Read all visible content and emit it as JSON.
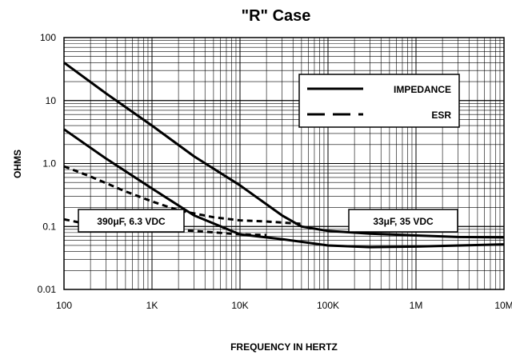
{
  "chart_data": {
    "type": "line",
    "title": "\"R\" Case",
    "xlabel": "FREQUENCY IN HERTZ",
    "ylabel": "OHMS",
    "xscale": "log",
    "yscale": "log",
    "xlim": [
      100,
      10000000
    ],
    "ylim": [
      0.01,
      100
    ],
    "grid": true,
    "x_ticks": [
      100,
      1000,
      10000,
      100000,
      1000000,
      10000000
    ],
    "x_tick_labels": [
      "100",
      "1K",
      "10K",
      "100K",
      "1M",
      "10M"
    ],
    "y_ticks": [
      100,
      10,
      1,
      0.1,
      0.01
    ],
    "y_tick_labels": [
      "100",
      "10",
      "1.0",
      "0.1",
      "0.01"
    ],
    "legend": {
      "position": "top-right",
      "entries": [
        {
          "label": "IMPEDANCE",
          "style": "solid"
        },
        {
          "label": "ESR",
          "style": "dashed"
        }
      ]
    },
    "annotations": [
      {
        "text": "390μF, 6.3 VDC",
        "position": "middle-left"
      },
      {
        "text": "33μF, 35 VDC",
        "position": "middle-right"
      }
    ],
    "series": [
      {
        "style": "solid",
        "points": [
          [
            100,
            40
          ],
          [
            300,
            13
          ],
          [
            1000,
            4
          ],
          [
            3000,
            1.3
          ],
          [
            10000,
            0.45
          ],
          [
            30000,
            0.15
          ],
          [
            50000,
            0.1
          ],
          [
            100000,
            0.085
          ],
          [
            300000,
            0.077
          ],
          [
            1000000,
            0.072
          ],
          [
            3000000,
            0.068
          ],
          [
            10000000,
            0.067
          ]
        ]
      },
      {
        "style": "dashed",
        "points": [
          [
            100,
            0.9
          ],
          [
            200,
            0.62
          ],
          [
            500,
            0.36
          ],
          [
            1000,
            0.25
          ],
          [
            2000,
            0.18
          ],
          [
            5000,
            0.14
          ],
          [
            10000,
            0.125
          ],
          [
            20000,
            0.12
          ],
          [
            50000,
            0.11
          ]
        ]
      },
      {
        "style": "solid",
        "points": [
          [
            100,
            3.5
          ],
          [
            300,
            1.2
          ],
          [
            1000,
            0.4
          ],
          [
            3000,
            0.15
          ],
          [
            10000,
            0.075
          ],
          [
            30000,
            0.063
          ],
          [
            100000,
            0.05
          ],
          [
            300000,
            0.047
          ],
          [
            1000000,
            0.048
          ],
          [
            10000000,
            0.052
          ]
        ]
      },
      {
        "style": "dashed",
        "points": [
          [
            100,
            0.13
          ],
          [
            300,
            0.095
          ],
          [
            1000,
            0.09
          ],
          [
            3000,
            0.085
          ],
          [
            10000,
            0.075
          ],
          [
            20000,
            0.073
          ]
        ]
      }
    ]
  }
}
